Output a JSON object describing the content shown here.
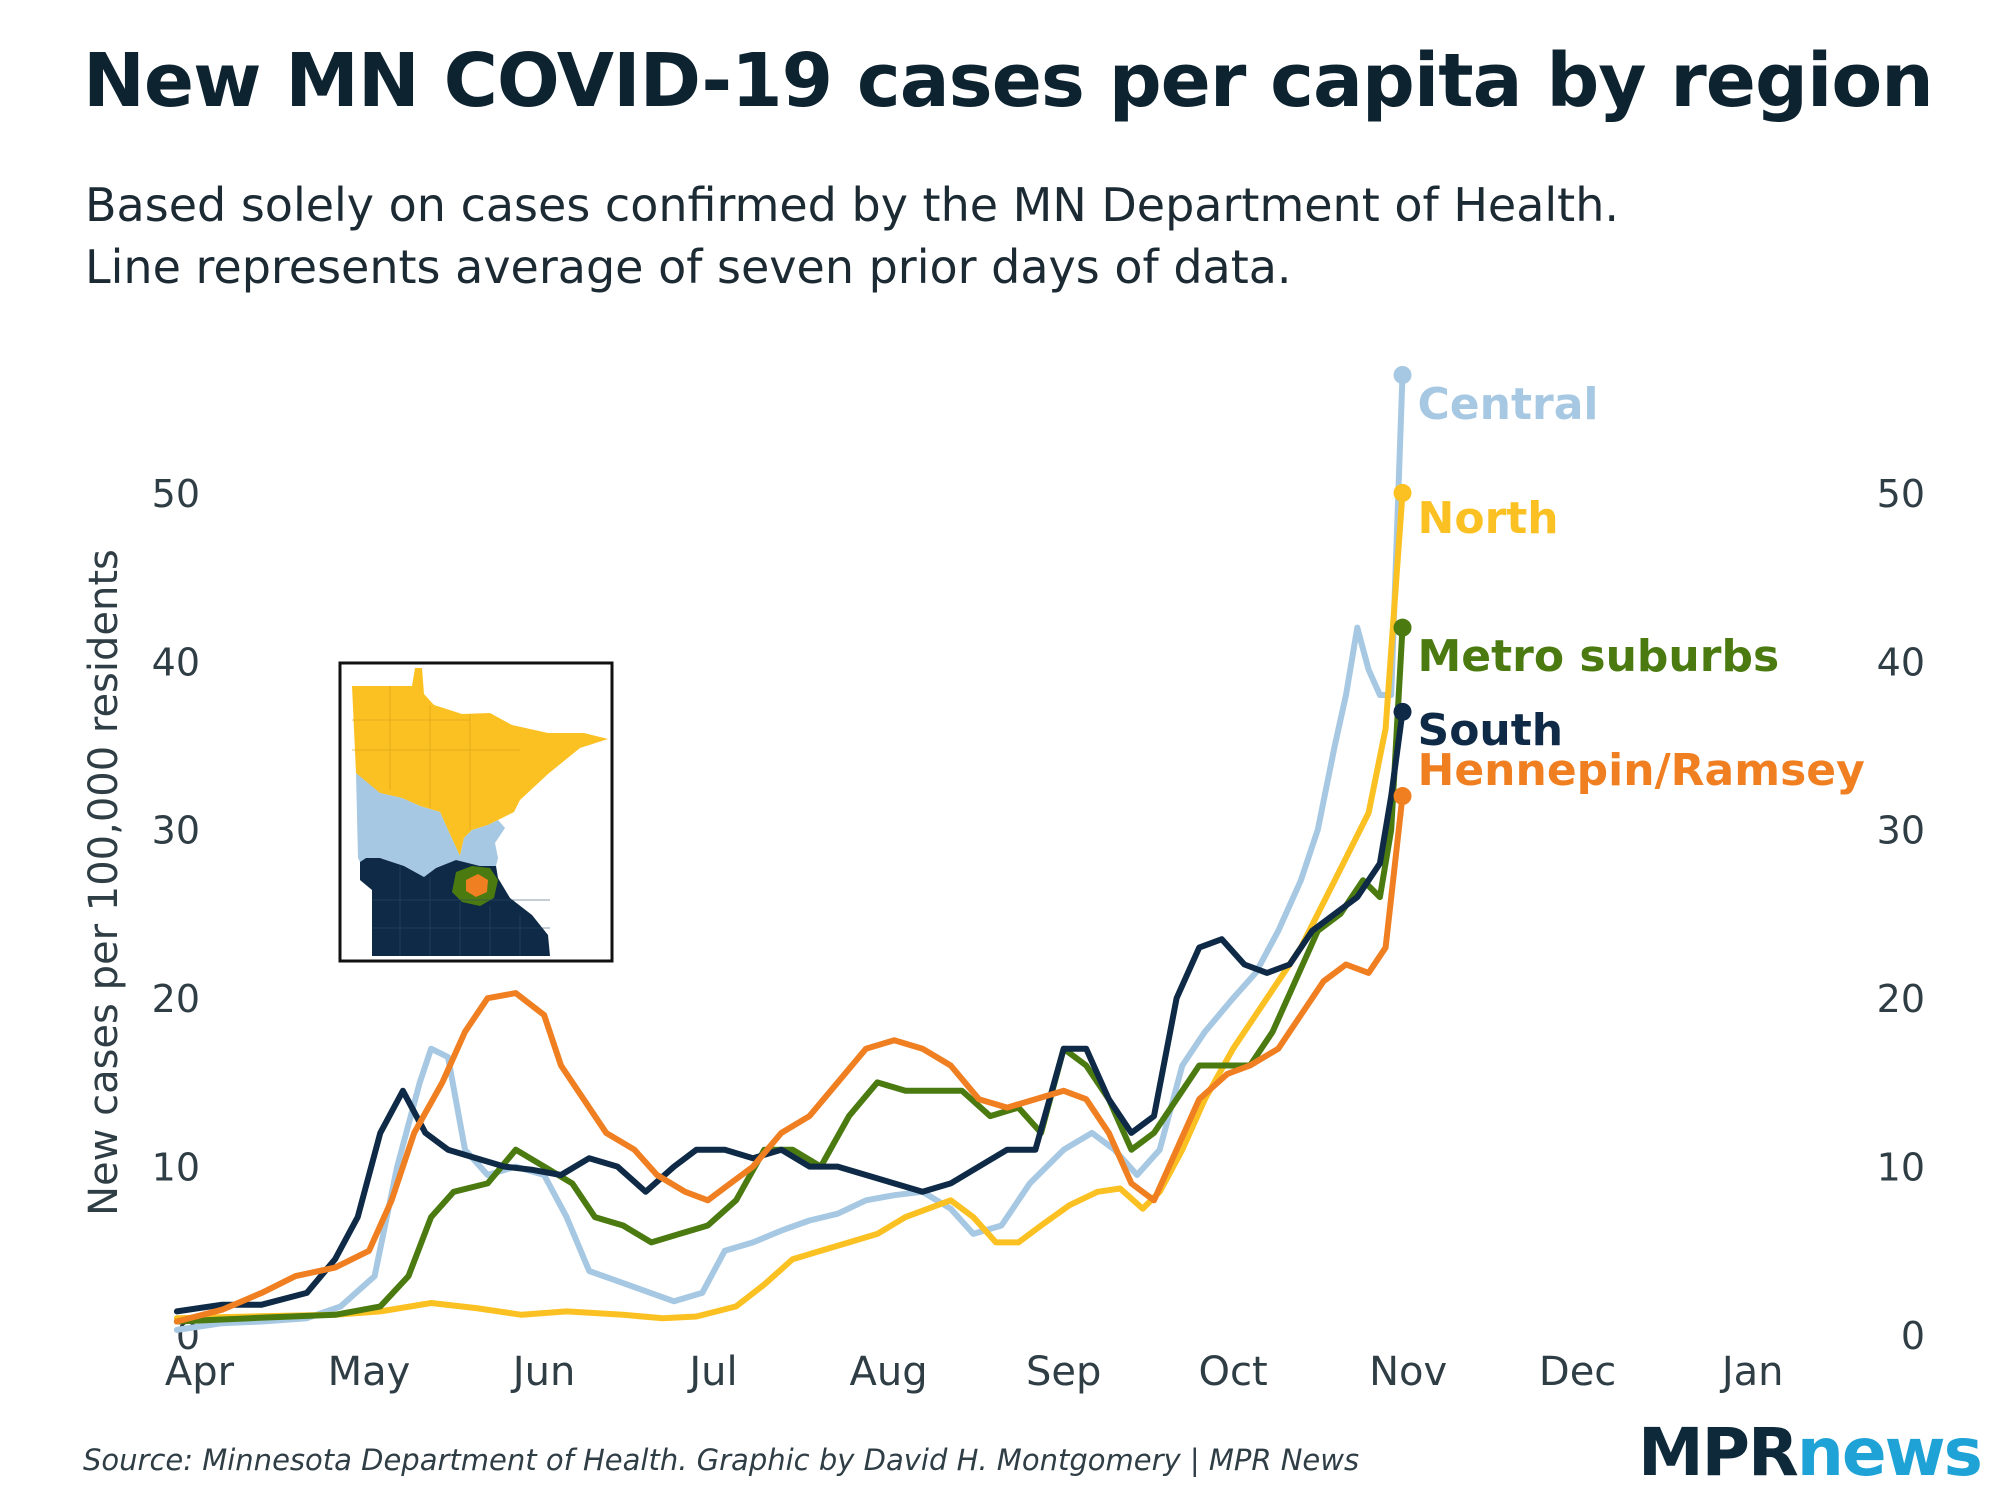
{
  "header": {
    "title": "New MN COVID-19 cases per capita by region",
    "subtitle_line1": "Based solely on cases confirmed by the MN Department of Health.",
    "subtitle_line2": "Line represents average of seven prior days of data."
  },
  "footer": {
    "source": "Source: Minnesota Department of Health. Graphic by David H. Montgomery | MPR News",
    "logo_mpr": "MPR",
    "logo_news": "news"
  },
  "chart_data": {
    "type": "line",
    "title": "New MN COVID-19 cases per capita by region",
    "ylabel": "New cases per 100,000 residents",
    "xlabel": "",
    "ylim": [
      0,
      57
    ],
    "xlim": [
      "2020-03-25",
      "2021-01-20"
    ],
    "yticks": [
      0,
      10,
      20,
      30,
      40,
      50
    ],
    "xticks": [
      {
        "date": "2020-04-01",
        "label": "Apr"
      },
      {
        "date": "2020-05-01",
        "label": "May"
      },
      {
        "date": "2020-06-01",
        "label": "Jun"
      },
      {
        "date": "2020-07-01",
        "label": "Jul"
      },
      {
        "date": "2020-08-01",
        "label": "Aug"
      },
      {
        "date": "2020-09-01",
        "label": "Sep"
      },
      {
        "date": "2020-10-01",
        "label": "Oct"
      },
      {
        "date": "2020-11-01",
        "label": "Nov"
      },
      {
        "date": "2020-12-01",
        "label": "Dec"
      },
      {
        "date": "2021-01-01",
        "label": "Jan"
      }
    ],
    "grid": false,
    "legend": "direct labels at line ends",
    "series": [
      {
        "name": "Central",
        "color": "#a6c8e2",
        "points": [
          [
            "2020-03-28",
            0.3
          ],
          [
            "2020-04-05",
            0.7
          ],
          [
            "2020-04-12",
            0.8
          ],
          [
            "2020-04-20",
            1.0
          ],
          [
            "2020-04-26",
            1.7
          ],
          [
            "2020-05-02",
            3.5
          ],
          [
            "2020-05-06",
            10
          ],
          [
            "2020-05-10",
            15
          ],
          [
            "2020-05-12",
            17
          ],
          [
            "2020-05-15",
            16.5
          ],
          [
            "2020-05-18",
            11
          ],
          [
            "2020-05-22",
            9.5
          ],
          [
            "2020-05-27",
            10
          ],
          [
            "2020-06-01",
            9.5
          ],
          [
            "2020-06-05",
            7
          ],
          [
            "2020-06-09",
            3.8
          ],
          [
            "2020-06-14",
            3.2
          ],
          [
            "2020-06-19",
            2.6
          ],
          [
            "2020-06-24",
            2.0
          ],
          [
            "2020-06-29",
            2.5
          ],
          [
            "2020-07-03",
            5.0
          ],
          [
            "2020-07-08",
            5.5
          ],
          [
            "2020-07-13",
            6.2
          ],
          [
            "2020-07-18",
            6.8
          ],
          [
            "2020-07-23",
            7.2
          ],
          [
            "2020-07-28",
            8.0
          ],
          [
            "2020-08-02",
            8.3
          ],
          [
            "2020-08-07",
            8.5
          ],
          [
            "2020-08-12",
            7.5
          ],
          [
            "2020-08-16",
            6.0
          ],
          [
            "2020-08-21",
            6.5
          ],
          [
            "2020-08-26",
            9.0
          ],
          [
            "2020-09-01",
            11
          ],
          [
            "2020-09-06",
            12
          ],
          [
            "2020-09-10",
            11
          ],
          [
            "2020-09-14",
            9.5
          ],
          [
            "2020-09-18",
            11
          ],
          [
            "2020-09-22",
            16
          ],
          [
            "2020-09-26",
            18
          ],
          [
            "2020-10-01",
            20
          ],
          [
            "2020-10-05",
            21.5
          ],
          [
            "2020-10-09",
            24
          ],
          [
            "2020-10-13",
            27
          ],
          [
            "2020-10-16",
            30
          ],
          [
            "2020-10-19",
            35
          ],
          [
            "2020-10-21",
            38
          ],
          [
            "2020-10-23",
            42
          ],
          [
            "2020-10-25",
            39.5
          ],
          [
            "2020-10-27",
            38
          ],
          [
            "2020-10-29",
            38
          ],
          [
            "2020-10-31",
            57
          ]
        ]
      },
      {
        "name": "North",
        "color": "#fbc122",
        "points": [
          [
            "2020-03-28",
            1.0
          ],
          [
            "2020-04-10",
            1.1
          ],
          [
            "2020-04-25",
            1.2
          ],
          [
            "2020-05-03",
            1.4
          ],
          [
            "2020-05-12",
            1.9
          ],
          [
            "2020-05-20",
            1.6
          ],
          [
            "2020-05-28",
            1.2
          ],
          [
            "2020-06-05",
            1.4
          ],
          [
            "2020-06-15",
            1.2
          ],
          [
            "2020-06-22",
            1.0
          ],
          [
            "2020-06-28",
            1.1
          ],
          [
            "2020-07-05",
            1.7
          ],
          [
            "2020-07-10",
            3.0
          ],
          [
            "2020-07-15",
            4.5
          ],
          [
            "2020-07-20",
            5.0
          ],
          [
            "2020-07-25",
            5.5
          ],
          [
            "2020-07-30",
            6.0
          ],
          [
            "2020-08-04",
            7.0
          ],
          [
            "2020-08-08",
            7.5
          ],
          [
            "2020-08-12",
            8.0
          ],
          [
            "2020-08-16",
            7.0
          ],
          [
            "2020-08-20",
            5.5
          ],
          [
            "2020-08-24",
            5.5
          ],
          [
            "2020-08-28",
            6.5
          ],
          [
            "2020-09-02",
            7.7
          ],
          [
            "2020-09-07",
            8.5
          ],
          [
            "2020-09-11",
            8.7
          ],
          [
            "2020-09-15",
            7.5
          ],
          [
            "2020-09-18",
            8.5
          ],
          [
            "2020-09-22",
            11
          ],
          [
            "2020-09-26",
            14
          ],
          [
            "2020-10-01",
            17
          ],
          [
            "2020-10-05",
            19
          ],
          [
            "2020-10-09",
            21
          ],
          [
            "2020-10-13",
            23
          ],
          [
            "2020-10-16",
            25
          ],
          [
            "2020-10-19",
            27
          ],
          [
            "2020-10-22",
            29
          ],
          [
            "2020-10-25",
            31
          ],
          [
            "2020-10-28",
            36
          ],
          [
            "2020-10-31",
            50
          ]
        ]
      },
      {
        "name": "Metro suburbs",
        "color": "#4a7a10",
        "points": [
          [
            "2020-03-28",
            0.8
          ],
          [
            "2020-04-10",
            1.0
          ],
          [
            "2020-04-25",
            1.2
          ],
          [
            "2020-05-03",
            1.7
          ],
          [
            "2020-05-08",
            3.5
          ],
          [
            "2020-05-12",
            7.0
          ],
          [
            "2020-05-16",
            8.5
          ],
          [
            "2020-05-22",
            9.0
          ],
          [
            "2020-05-27",
            11
          ],
          [
            "2020-06-01",
            10
          ],
          [
            "2020-06-06",
            9.0
          ],
          [
            "2020-06-10",
            7.0
          ],
          [
            "2020-06-15",
            6.5
          ],
          [
            "2020-06-20",
            5.5
          ],
          [
            "2020-06-25",
            6.0
          ],
          [
            "2020-06-30",
            6.5
          ],
          [
            "2020-07-05",
            8.0
          ],
          [
            "2020-07-10",
            11
          ],
          [
            "2020-07-15",
            11
          ],
          [
            "2020-07-20",
            10
          ],
          [
            "2020-07-25",
            13
          ],
          [
            "2020-07-30",
            15
          ],
          [
            "2020-08-04",
            14.5
          ],
          [
            "2020-08-09",
            14.5
          ],
          [
            "2020-08-14",
            14.5
          ],
          [
            "2020-08-19",
            13
          ],
          [
            "2020-08-24",
            13.5
          ],
          [
            "2020-08-28",
            12
          ],
          [
            "2020-09-01",
            17
          ],
          [
            "2020-09-05",
            16
          ],
          [
            "2020-09-09",
            14
          ],
          [
            "2020-09-13",
            11
          ],
          [
            "2020-09-17",
            12
          ],
          [
            "2020-09-21",
            14
          ],
          [
            "2020-09-25",
            16
          ],
          [
            "2020-09-30",
            16
          ],
          [
            "2020-10-04",
            16
          ],
          [
            "2020-10-08",
            18
          ],
          [
            "2020-10-12",
            21
          ],
          [
            "2020-10-16",
            24
          ],
          [
            "2020-10-20",
            25
          ],
          [
            "2020-10-24",
            27
          ],
          [
            "2020-10-27",
            26
          ],
          [
            "2020-10-29",
            30
          ],
          [
            "2020-10-31",
            42
          ]
        ]
      },
      {
        "name": "South",
        "color": "#0e2a47",
        "points": [
          [
            "2020-03-28",
            1.4
          ],
          [
            "2020-04-05",
            1.8
          ],
          [
            "2020-04-12",
            1.8
          ],
          [
            "2020-04-20",
            2.5
          ],
          [
            "2020-04-25",
            4.5
          ],
          [
            "2020-04-29",
            7.0
          ],
          [
            "2020-05-03",
            12
          ],
          [
            "2020-05-07",
            14.5
          ],
          [
            "2020-05-11",
            12
          ],
          [
            "2020-05-15",
            11
          ],
          [
            "2020-05-20",
            10.5
          ],
          [
            "2020-05-25",
            10
          ],
          [
            "2020-05-30",
            9.8
          ],
          [
            "2020-06-04",
            9.5
          ],
          [
            "2020-06-09",
            10.5
          ],
          [
            "2020-06-14",
            10
          ],
          [
            "2020-06-19",
            8.5
          ],
          [
            "2020-06-24",
            10
          ],
          [
            "2020-06-28",
            11
          ],
          [
            "2020-07-03",
            11
          ],
          [
            "2020-07-08",
            10.5
          ],
          [
            "2020-07-13",
            11
          ],
          [
            "2020-07-18",
            10
          ],
          [
            "2020-07-23",
            10
          ],
          [
            "2020-07-28",
            9.5
          ],
          [
            "2020-08-02",
            9.0
          ],
          [
            "2020-08-07",
            8.5
          ],
          [
            "2020-08-12",
            9.0
          ],
          [
            "2020-08-17",
            10
          ],
          [
            "2020-08-22",
            11
          ],
          [
            "2020-08-27",
            11
          ],
          [
            "2020-09-01",
            17
          ],
          [
            "2020-09-05",
            17
          ],
          [
            "2020-09-09",
            14
          ],
          [
            "2020-09-13",
            12
          ],
          [
            "2020-09-17",
            13
          ],
          [
            "2020-09-21",
            20
          ],
          [
            "2020-09-25",
            23
          ],
          [
            "2020-09-29",
            23.5
          ],
          [
            "2020-10-03",
            22
          ],
          [
            "2020-10-07",
            21.5
          ],
          [
            "2020-10-11",
            22
          ],
          [
            "2020-10-15",
            24
          ],
          [
            "2020-10-19",
            25
          ],
          [
            "2020-10-23",
            26
          ],
          [
            "2020-10-27",
            28
          ],
          [
            "2020-10-29",
            32
          ],
          [
            "2020-10-31",
            37
          ]
        ]
      },
      {
        "name": "Hennepin/Ramsey",
        "color": "#f07f22",
        "points": [
          [
            "2020-03-28",
            0.8
          ],
          [
            "2020-04-05",
            1.5
          ],
          [
            "2020-04-12",
            2.5
          ],
          [
            "2020-04-18",
            3.5
          ],
          [
            "2020-04-25",
            4.0
          ],
          [
            "2020-05-01",
            5.0
          ],
          [
            "2020-05-05",
            8.0
          ],
          [
            "2020-05-09",
            12
          ],
          [
            "2020-05-14",
            15
          ],
          [
            "2020-05-18",
            18
          ],
          [
            "2020-05-22",
            20
          ],
          [
            "2020-05-27",
            20.3
          ],
          [
            "2020-06-01",
            19
          ],
          [
            "2020-06-04",
            16
          ],
          [
            "2020-06-08",
            14
          ],
          [
            "2020-06-12",
            12
          ],
          [
            "2020-06-17",
            11
          ],
          [
            "2020-06-21",
            9.5
          ],
          [
            "2020-06-26",
            8.5
          ],
          [
            "2020-06-30",
            8.0
          ],
          [
            "2020-07-04",
            9.0
          ],
          [
            "2020-07-08",
            10
          ],
          [
            "2020-07-13",
            12
          ],
          [
            "2020-07-18",
            13
          ],
          [
            "2020-07-23",
            15
          ],
          [
            "2020-07-28",
            17
          ],
          [
            "2020-08-02",
            17.5
          ],
          [
            "2020-08-07",
            17
          ],
          [
            "2020-08-12",
            16
          ],
          [
            "2020-08-17",
            14
          ],
          [
            "2020-08-22",
            13.5
          ],
          [
            "2020-08-27",
            14
          ],
          [
            "2020-09-01",
            14.5
          ],
          [
            "2020-09-05",
            14
          ],
          [
            "2020-09-09",
            12
          ],
          [
            "2020-09-13",
            9.0
          ],
          [
            "2020-09-17",
            8.0
          ],
          [
            "2020-09-21",
            11
          ],
          [
            "2020-09-25",
            14
          ],
          [
            "2020-09-30",
            15.5
          ],
          [
            "2020-10-04",
            16
          ],
          [
            "2020-10-09",
            17
          ],
          [
            "2020-10-13",
            19
          ],
          [
            "2020-10-17",
            21
          ],
          [
            "2020-10-21",
            22
          ],
          [
            "2020-10-25",
            21.5
          ],
          [
            "2020-10-28",
            23
          ],
          [
            "2020-10-31",
            32
          ]
        ]
      }
    ]
  }
}
